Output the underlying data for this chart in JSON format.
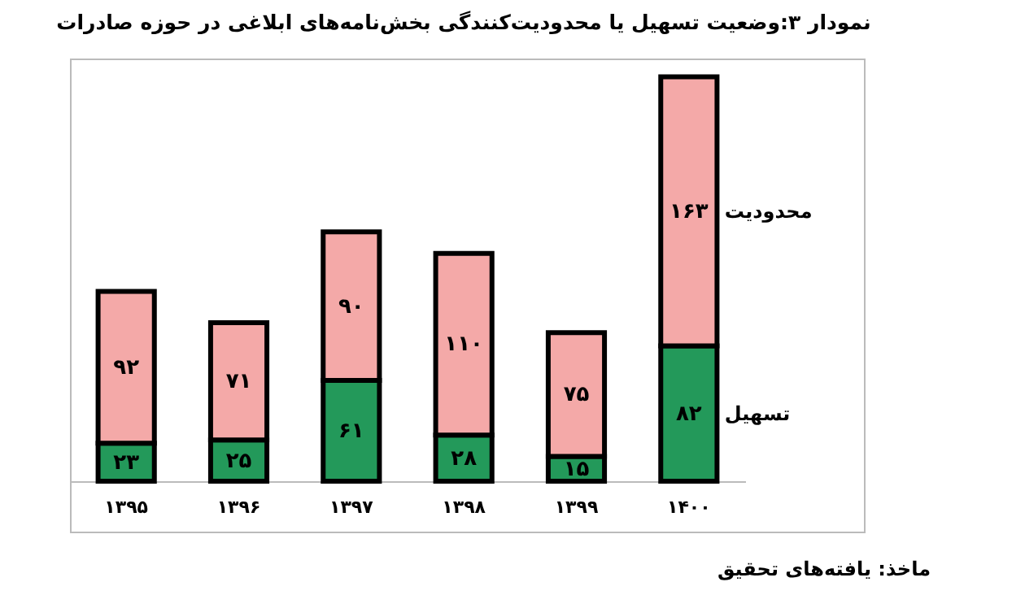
{
  "chart_data": {
    "type": "bar",
    "title": "نمودار ۳:وضعیت تسهیل یا محدودیت‌کنندگی بخش‌نامه‌های ابلاغی در حوزه صادرات",
    "categories": [
      "۱۳۹۵",
      "۱۳۹۶",
      "۱۳۹۷",
      "۱۳۹۸",
      "۱۳۹۹",
      "۱۴۰۰"
    ],
    "stacked": true,
    "series": [
      {
        "name": "تسهیل",
        "color": "#23995a",
        "values": [
          23,
          25,
          61,
          28,
          15,
          82
        ],
        "value_labels": [
          "۲۳",
          "۲۵",
          "۶۱",
          "۲۸",
          "۱۵",
          "۸۲"
        ]
      },
      {
        "name": "محدودیت",
        "color": "#f4a9a8",
        "values": [
          92,
          71,
          90,
          110,
          75,
          163
        ],
        "value_labels": [
          "۹۲",
          "۷۱",
          "۹۰",
          "۱۱۰",
          "۷۵",
          "۱۶۳"
        ]
      }
    ],
    "annotations": [
      "ماخذ: یافته‌های تحقیق"
    ]
  }
}
